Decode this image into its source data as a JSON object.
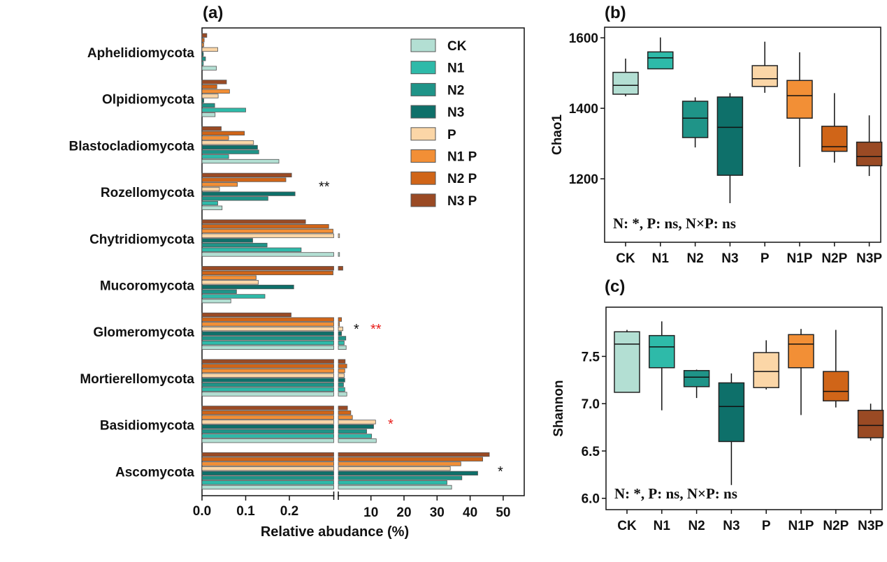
{
  "chart_data": [
    {
      "panel_label": "(a)",
      "type": "bar",
      "orientation": "horizontal",
      "xlabel": "Relative abudance (%)",
      "ylabel": "",
      "x_axis_break": true,
      "x_ticks_left": [
        "0.0",
        "0.1",
        "0.2"
      ],
      "x_ticks_right": [
        "10",
        "20",
        "30",
        "40",
        "50"
      ],
      "xlim_left": [
        0,
        0.3
      ],
      "xlim_right": [
        0.3,
        57
      ],
      "legend_placement": "top-right",
      "categories": [
        "Aphelidiomycota",
        "Olpidiomycota",
        "Blastocladiomycota",
        "Rozellomycota",
        "Chytridiomycota",
        "Mucoromycota",
        "Glomeromycota",
        "Mortierellomycota",
        "Basidiomycota",
        "Ascomycota"
      ],
      "series": [
        {
          "name": "CK",
          "color": "#b3dfd3",
          "values": [
            0.033,
            0.03,
            0.176,
            0.046,
            0.5,
            0.066,
            2.5,
            2.7,
            11.6,
            34.4
          ]
        },
        {
          "name": "N1",
          "color": "#2ebaa9",
          "values": [
            0.003,
            0.1,
            0.061,
            0.036,
            0.227,
            0.144,
            1.9,
            2.1,
            10.2,
            33.0
          ]
        },
        {
          "name": "N2",
          "color": "#1f9488",
          "values": [
            0.008,
            0.029,
            0.13,
            0.151,
            0.149,
            0.079,
            2.4,
            1.7,
            8.7,
            37.5
          ]
        },
        {
          "name": "N3",
          "color": "#0e706a",
          "values": [
            0.003,
            0.004,
            0.127,
            0.213,
            0.116,
            0.21,
            1.1,
            2.1,
            10.8,
            42.3
          ]
        },
        {
          "name": "P",
          "color": "#fbd6a7",
          "values": [
            0.036,
            0.037,
            0.118,
            0.04,
            0.5,
            0.129,
            1.5,
            1.9,
            11.4,
            34.0
          ]
        },
        {
          "name": "N1 P",
          "color": "#f28f36",
          "values": [
            0.004,
            0.063,
            0.061,
            0.081,
            0.3,
            0.124,
            0.48,
            2.1,
            4.4,
            37.2
          ]
        },
        {
          "name": "N2 P",
          "color": "#d06518",
          "values": [
            0.005,
            0.034,
            0.097,
            0.192,
            0.29,
            0.3,
            1.1,
            2.7,
            3.9,
            43.8
          ]
        },
        {
          "name": "N3 P",
          "color": "#9a4a24",
          "values": [
            0.011,
            0.056,
            0.044,
            0.205,
            0.237,
            1.5,
            0.204,
            2.2,
            2.9,
            45.8
          ]
        }
      ],
      "annotations": [
        {
          "category": "Rozellomycota",
          "text": "**",
          "color": "#111111"
        },
        {
          "category": "Glomeromycota",
          "text": "*",
          "color": "#111111"
        },
        {
          "category": "Glomeromycota",
          "text": "**",
          "color": "#e8201c"
        },
        {
          "category": "Basidiomycota",
          "text": "*",
          "color": "#e8201c"
        },
        {
          "category": "Ascomycota",
          "text": "*",
          "color": "#111111"
        }
      ]
    },
    {
      "panel_label": "(b)",
      "type": "box",
      "ylabel": "Chao1",
      "xlabel": "",
      "ylim": [
        1020,
        1630
      ],
      "y_ticks": [
        1200,
        1400,
        1600
      ],
      "categories": [
        "CK",
        "N1",
        "N2",
        "N3",
        "P",
        "N1P",
        "N2P",
        "N3P"
      ],
      "colors": [
        "#b3dfd3",
        "#2ebaa9",
        "#1f9488",
        "#0e706a",
        "#fbd6a7",
        "#f28f36",
        "#d06518",
        "#9a4a24"
      ],
      "boxes": [
        {
          "min": 1434,
          "q1": 1440,
          "median": 1465,
          "q3": 1502,
          "max": 1541
        },
        {
          "min": 1512,
          "q1": 1512,
          "median": 1543,
          "q3": 1560,
          "max": 1601
        },
        {
          "min": 1289,
          "q1": 1317,
          "median": 1372,
          "q3": 1420,
          "max": 1431
        },
        {
          "min": 1131,
          "q1": 1210,
          "median": 1346,
          "q3": 1432,
          "max": 1443
        },
        {
          "min": 1444,
          "q1": 1462,
          "median": 1484,
          "q3": 1521,
          "max": 1589
        },
        {
          "min": 1234,
          "q1": 1372,
          "median": 1436,
          "q3": 1479,
          "max": 1559
        },
        {
          "min": 1246,
          "q1": 1278,
          "median": 1291,
          "q3": 1349,
          "max": 1443
        },
        {
          "min": 1208,
          "q1": 1237,
          "median": 1263,
          "q3": 1304,
          "max": 1380
        }
      ],
      "annotation": "N: *, P: ns, N×P: ns"
    },
    {
      "panel_label": "(c)",
      "type": "box",
      "ylabel": "Shannon",
      "xlabel": "",
      "ylim": [
        5.88,
        8.02
      ],
      "y_ticks": [
        "6.0",
        "6.5",
        "7.0",
        "7.5"
      ],
      "categories": [
        "CK",
        "N1",
        "N2",
        "N3",
        "P",
        "N1P",
        "N2P",
        "N3P"
      ],
      "colors": [
        "#b3dfd3",
        "#2ebaa9",
        "#1f9488",
        "#0e706a",
        "#fbd6a7",
        "#f28f36",
        "#d06518",
        "#9a4a24"
      ],
      "boxes": [
        {
          "min": 7.12,
          "q1": 7.12,
          "median": 7.63,
          "q3": 7.76,
          "max": 7.78
        },
        {
          "min": 6.93,
          "q1": 7.38,
          "median": 7.6,
          "q3": 7.72,
          "max": 7.87
        },
        {
          "min": 7.06,
          "q1": 7.18,
          "median": 7.28,
          "q3": 7.35,
          "max": 7.36
        },
        {
          "min": 6.14,
          "q1": 6.6,
          "median": 6.97,
          "q3": 7.22,
          "max": 7.32
        },
        {
          "min": 7.15,
          "q1": 7.17,
          "median": 7.34,
          "q3": 7.54,
          "max": 7.67
        },
        {
          "min": 6.88,
          "q1": 7.38,
          "median": 7.63,
          "q3": 7.73,
          "max": 7.79
        },
        {
          "min": 6.96,
          "q1": 7.03,
          "median": 7.13,
          "q3": 7.34,
          "max": 7.78
        },
        {
          "min": 6.61,
          "q1": 6.64,
          "median": 6.77,
          "q3": 6.93,
          "max": 7.0
        }
      ],
      "annotation": "N: *, P: ns,  N×P: ns"
    }
  ]
}
